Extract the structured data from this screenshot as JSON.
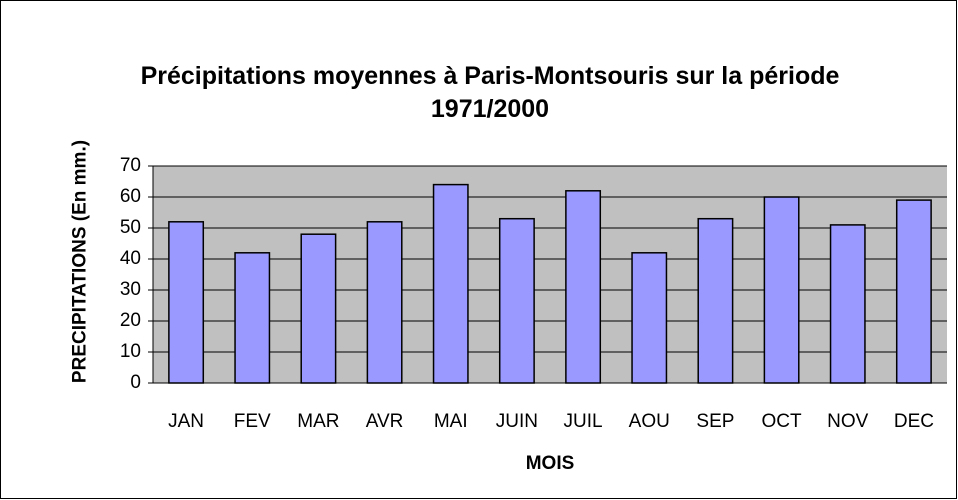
{
  "chart_data": {
    "type": "bar",
    "title": "Précipitations moyennes à Paris-Montsouris sur la période 1971/2000",
    "x_label": "MOIS",
    "y_label": "PRECIPITATIONS (En mm.)",
    "categories": [
      "JAN",
      "FEV",
      "MAR",
      "AVR",
      "MAI",
      "JUIN",
      "JUIL",
      "AOU",
      "SEP",
      "OCT",
      "NOV",
      "DEC"
    ],
    "values": [
      52,
      42,
      48,
      52,
      64,
      53,
      62,
      42,
      53,
      60,
      51,
      59
    ],
    "color": "#9999ff",
    "ylim": [
      0,
      70
    ],
    "yticks": [
      0,
      10,
      20,
      30,
      40,
      50,
      60,
      70
    ],
    "grid": true
  }
}
